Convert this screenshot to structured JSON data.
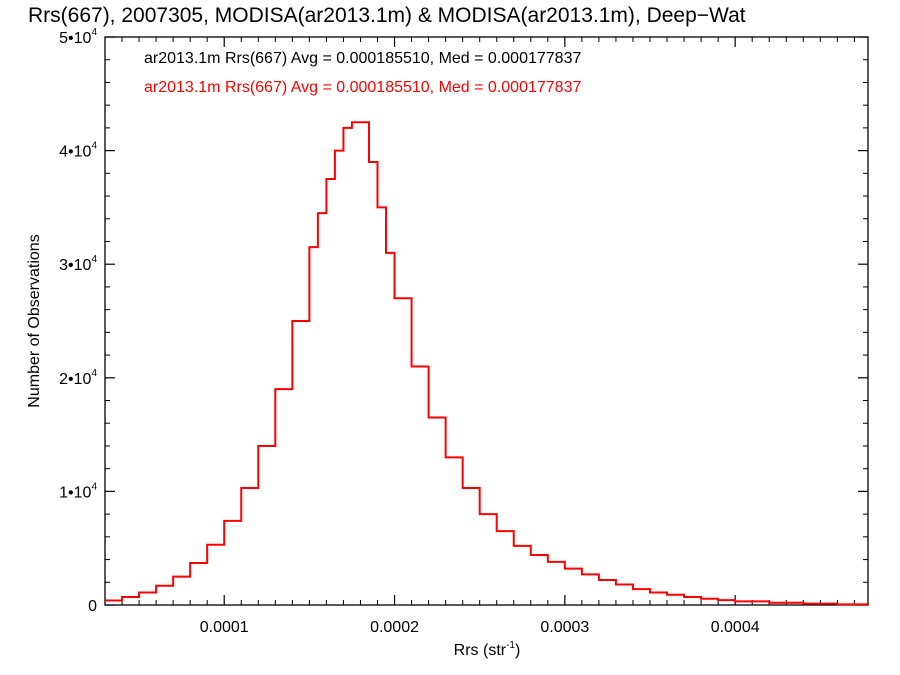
{
  "chart_data": {
    "type": "line",
    "title": "Rrs(667), 2007305, MODISA(ar2013.1m) & MODISA(ar2013.1m), Deep−Wat",
    "xlabel": "Rrs (str",
    "xlabel_sup": "-1",
    "xlabel_close": ")",
    "ylabel": "Number of Observations",
    "xlim": [
      3e-05,
      0.000478
    ],
    "ylim": [
      0,
      50000
    ],
    "x_ticks": [
      {
        "value": 0.0001,
        "label": "0.0001"
      },
      {
        "value": 0.0002,
        "label": "0.0002"
      },
      {
        "value": 0.0003,
        "label": "0.0003"
      },
      {
        "value": 0.0004,
        "label": "0.0004"
      }
    ],
    "y_ticks": [
      {
        "value": 0,
        "mant": "0",
        "exp": ""
      },
      {
        "value": 10000,
        "mant": "1•10",
        "exp": "4"
      },
      {
        "value": 20000,
        "mant": "2•10",
        "exp": "4"
      },
      {
        "value": 30000,
        "mant": "3•10",
        "exp": "4"
      },
      {
        "value": 40000,
        "mant": "4•10",
        "exp": "4"
      },
      {
        "value": 50000,
        "mant": "5•10",
        "exp": "4"
      }
    ],
    "annotations": [
      {
        "text": "ar2013.1m Rrs(667) Avg = 0.000185510, Med = 0.000177837",
        "color": "#000000"
      },
      {
        "text": "ar2013.1m Rrs(667) Avg = 0.000185510, Med = 0.000177837",
        "color": "#ff0000"
      }
    ],
    "series": [
      {
        "color": "#ff0000",
        "x": [
          3e-05,
          4e-05,
          5e-05,
          6e-05,
          7e-05,
          8e-05,
          9e-05,
          0.0001,
          0.00011,
          0.00012,
          0.00013,
          0.00014,
          0.00015,
          0.000155,
          0.00016,
          0.000165,
          0.00017,
          0.000175,
          0.00018,
          0.000185,
          0.00019,
          0.000195,
          0.0002,
          0.00021,
          0.00022,
          0.00023,
          0.00024,
          0.00025,
          0.00026,
          0.00027,
          0.00028,
          0.00029,
          0.0003,
          0.00031,
          0.00032,
          0.00033,
          0.00034,
          0.00035,
          0.00036,
          0.00037,
          0.00038,
          0.00039,
          0.0004,
          0.00042,
          0.00044,
          0.00046,
          0.000478
        ],
        "y": [
          400,
          700,
          1100,
          1700,
          2500,
          3700,
          5300,
          7400,
          10300,
          14000,
          19000,
          25000,
          31500,
          34500,
          37500,
          40000,
          42000,
          42500,
          42500,
          39000,
          35000,
          31000,
          27000,
          21000,
          16500,
          13000,
          10300,
          8000,
          6500,
          5200,
          4400,
          3800,
          3200,
          2700,
          2200,
          1800,
          1400,
          1100,
          900,
          700,
          550,
          430,
          320,
          200,
          120,
          60,
          20
        ]
      }
    ]
  }
}
